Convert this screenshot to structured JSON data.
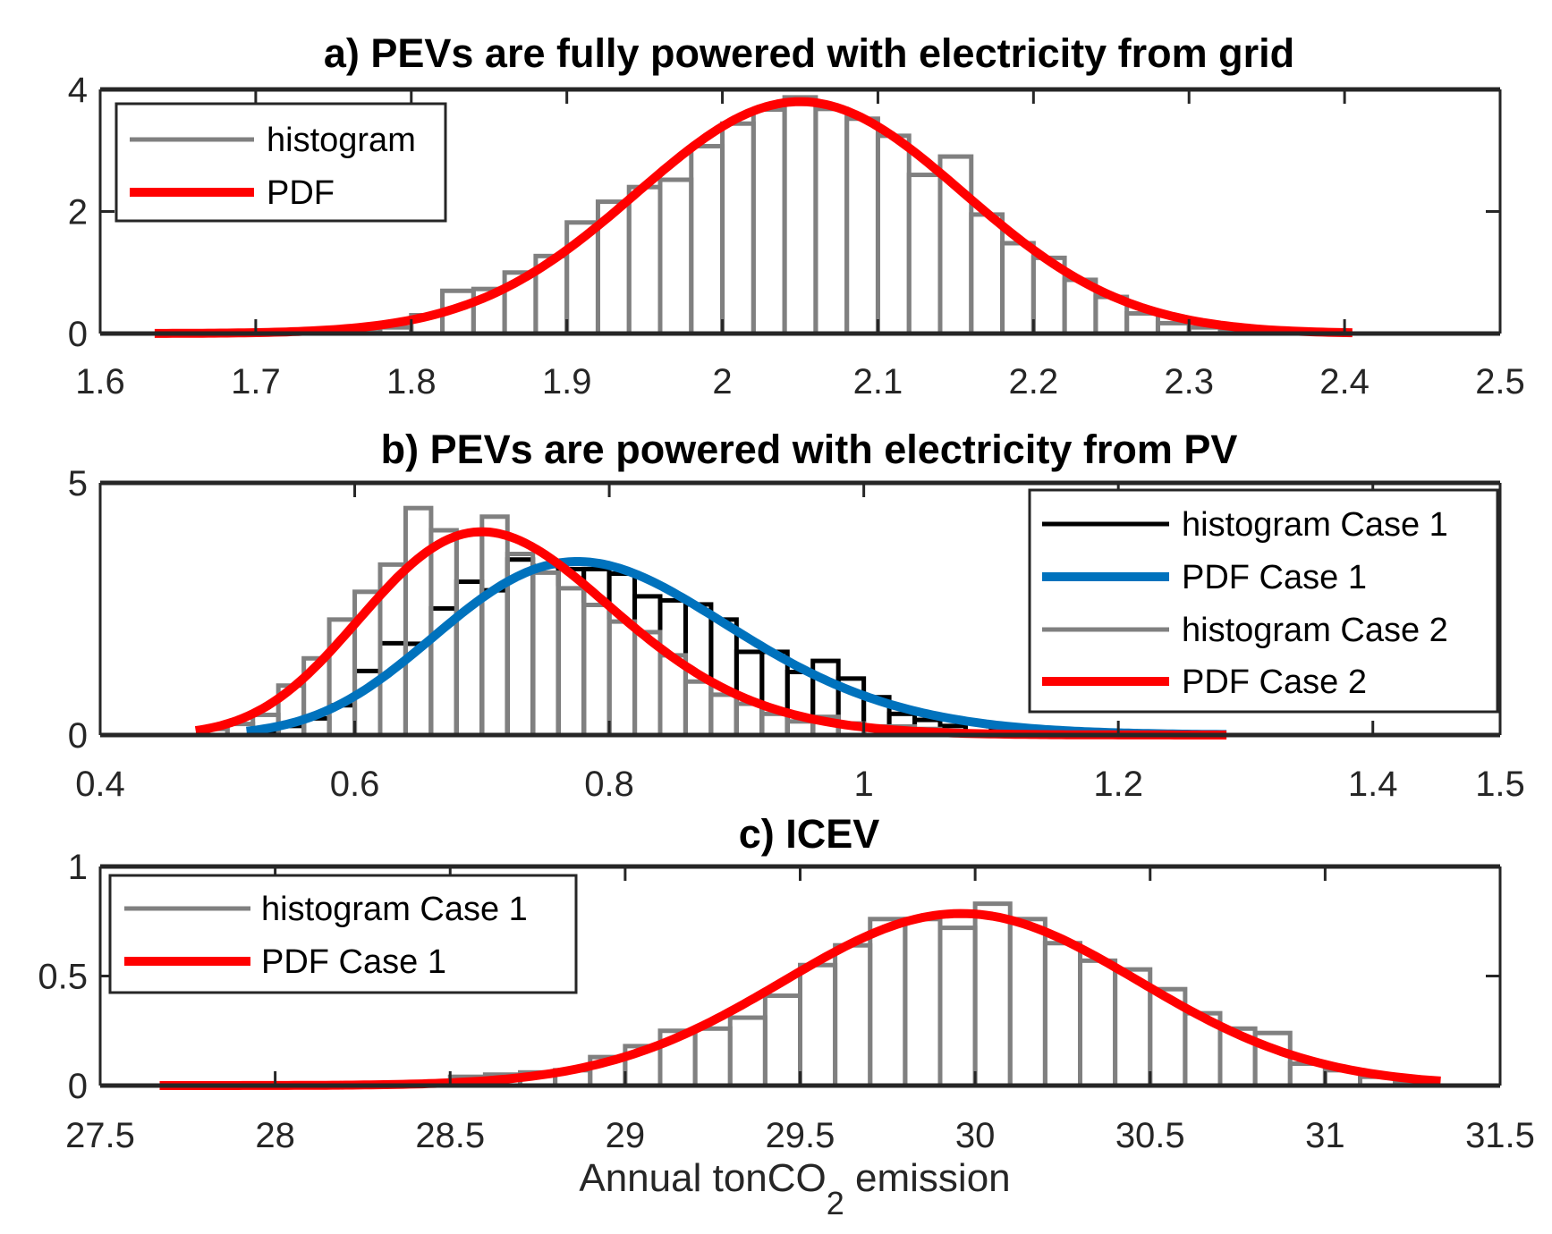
{
  "colors": {
    "hist_gray": "#808080",
    "hist_black": "#000000",
    "pdf_red": "#ff0000",
    "pdf_blue": "#0072bd",
    "axis": "#262626"
  },
  "chart_data": [
    {
      "type": "bar",
      "title": "a) PEVs are fully powered with electricity from grid",
      "xlabel": "",
      "ylabel": "",
      "xlim": [
        1.6,
        2.5
      ],
      "ylim": [
        0,
        4
      ],
      "xticks": [
        "1.6",
        "1.7",
        "1.8",
        "1.9",
        "2",
        "2.1",
        "2.2",
        "2.3",
        "2.4",
        "2.5"
      ],
      "yticks": [
        "0",
        "2",
        "4"
      ],
      "legend_position": "top-left",
      "legend": [
        "histogram",
        "PDF"
      ],
      "series": [
        {
          "name": "histogram",
          "kind": "histogram",
          "color": "#808080",
          "bin_start": 1.76,
          "bin_width": 0.02,
          "values": [
            0.02,
            0.1,
            0.3,
            0.7,
            0.73,
            1.0,
            1.27,
            1.82,
            2.16,
            2.4,
            2.52,
            3.07,
            3.44,
            3.67,
            3.87,
            3.68,
            3.52,
            3.24,
            2.6,
            2.9,
            1.95,
            1.48,
            1.24,
            0.88,
            0.6,
            0.33,
            0.17,
            0.1,
            0.05,
            0.03,
            0.01
          ]
        },
        {
          "name": "PDF",
          "kind": "pdf",
          "color": "#ff0000",
          "dist": "normal",
          "mean": 2.05,
          "sd": 0.105,
          "range": [
            1.635,
            2.405
          ]
        }
      ]
    },
    {
      "type": "bar",
      "title": "b) PEVs are powered with electricity from PV",
      "xlabel": "",
      "ylabel": "",
      "xlim": [
        0.4,
        1.5
      ],
      "ylim": [
        0,
        5
      ],
      "xticks": [
        "0.4",
        "0.6",
        "0.8",
        "1",
        "1.2",
        "1.4",
        "1.5"
      ],
      "xtick_values": [
        0.4,
        0.6,
        0.8,
        1.0,
        1.2,
        1.4,
        1.5
      ],
      "yticks": [
        "0",
        "5"
      ],
      "legend_position": "top-right",
      "legend": [
        "histogram Case 1",
        "PDF Case 1",
        "histogram Case 2",
        "PDF Case 2"
      ],
      "series": [
        {
          "name": "histogram Case 1",
          "kind": "histogram",
          "color": "#000000",
          "bin_start": 0.52,
          "bin_width": 0.02,
          "values": [
            0.08,
            0.18,
            0.33,
            0.59,
            1.27,
            1.82,
            1.81,
            2.51,
            3.04,
            2.87,
            3.48,
            3.35,
            3.29,
            3.29,
            3.2,
            2.75,
            2.67,
            2.59,
            2.29,
            1.65,
            1.65,
            1.25,
            1.47,
            1.12,
            0.75,
            0.42,
            0.3,
            0.18,
            0.24,
            0.12,
            0.05,
            0.03,
            0.02
          ]
        },
        {
          "name": "histogram Case 2",
          "kind": "histogram",
          "color": "#808080",
          "bin_start": 0.48,
          "bin_width": 0.02,
          "values": [
            0.12,
            0.22,
            0.4,
            0.98,
            1.52,
            2.29,
            2.84,
            3.38,
            4.5,
            4.06,
            3.98,
            4.33,
            3.59,
            3.22,
            2.91,
            2.58,
            2.25,
            2.04,
            1.58,
            1.06,
            0.8,
            0.62,
            0.42,
            0.27,
            0.36,
            0.23,
            0.17,
            0.17,
            0.12,
            0.05,
            0.03,
            0.02
          ]
        },
        {
          "name": "PDF Case 1",
          "kind": "pdf",
          "color": "#0072bd",
          "dist": "lognormal",
          "mu": -0.233,
          "sigma": 0.148,
          "range": [
            0.515,
            1.285
          ]
        },
        {
          "name": "PDF Case 2",
          "kind": "pdf",
          "color": "#ff0000",
          "dist": "lognormal",
          "mu": -0.3371,
          "sigma": 0.14,
          "range": [
            0.475,
            1.285
          ]
        }
      ]
    },
    {
      "type": "bar",
      "title": "c) ICEV",
      "xlabel": "Annual tonCO",
      "xlabel_subscript": "2",
      "xlabel_suffix": " emission",
      "ylabel": "",
      "xlim": [
        27.5,
        31.5
      ],
      "ylim": [
        0,
        1
      ],
      "xticks": [
        "27.5",
        "28",
        "28.5",
        "29",
        "29.5",
        "30",
        "30.5",
        "31",
        "31.5"
      ],
      "yticks": [
        "0",
        "0.5",
        "1"
      ],
      "legend_position": "top-left",
      "legend": [
        "histogram Case 1",
        "PDF Case 1"
      ],
      "series": [
        {
          "name": "histogram Case 1",
          "kind": "histogram",
          "color": "#808080",
          "bin_start": 28.5,
          "bin_width": 0.1,
          "values": [
            0.04,
            0.05,
            0.06,
            0.07,
            0.13,
            0.18,
            0.25,
            0.26,
            0.31,
            0.41,
            0.55,
            0.64,
            0.76,
            0.76,
            0.72,
            0.83,
            0.76,
            0.65,
            0.57,
            0.53,
            0.44,
            0.33,
            0.26,
            0.24,
            0.1,
            0.07,
            0.04,
            0.02
          ]
        },
        {
          "name": "PDF Case 1",
          "kind": "pdf",
          "color": "#ff0000",
          "dist": "normal",
          "mean": 29.96,
          "sd": 0.508,
          "range": [
            27.67,
            31.33
          ]
        }
      ]
    }
  ]
}
